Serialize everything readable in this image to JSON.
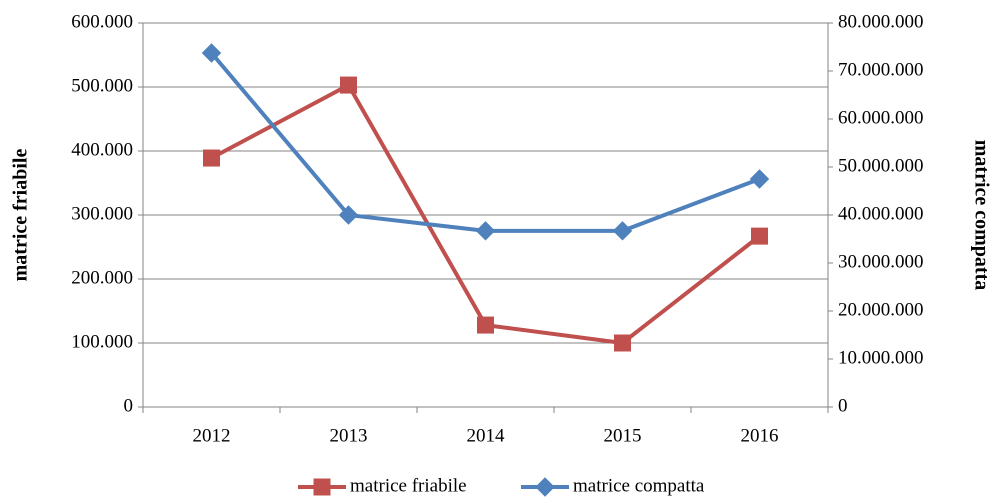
{
  "chart_data": {
    "type": "line",
    "ylabel": "matrice friabile",
    "y2label": "matrice compatta",
    "categories": [
      "2012",
      "2013",
      "2014",
      "2015",
      "2016"
    ],
    "series": [
      {
        "name": "matrice friabile",
        "color": "#c0504d",
        "marker": "square",
        "values": [
          389000,
          503000,
          128000,
          100000,
          267000
        ]
      },
      {
        "name": "matrice compatta",
        "color": "#4f81bd",
        "marker": "diamond",
        "axis": "y2",
        "values": [
          73750000,
          40000000,
          36700000,
          36700000,
          47500000
        ]
      }
    ],
    "ylim": [
      0,
      600000
    ],
    "yticks": [
      0,
      {
        "value": 100000,
        "label": "100.000"
      },
      {
        "value": 200000,
        "label": "200.000"
      },
      {
        "value": 300000,
        "label": "300.000"
      },
      {
        "value": 400000,
        "label": "400.000"
      },
      {
        "value": 500000,
        "label": "500.000"
      },
      {
        "value": 600000,
        "label": "600.000"
      }
    ],
    "y2lim": [
      0,
      80000000
    ],
    "y2ticks": [
      0,
      {
        "value": 10000000,
        "label": "10.000.000"
      },
      {
        "value": 20000000,
        "label": "20.000.000"
      },
      {
        "value": 30000000,
        "label": "30.000.000"
      },
      {
        "value": 40000000,
        "label": "40.000.000"
      },
      {
        "value": 50000000,
        "label": "50.000.000"
      },
      {
        "value": 60000000,
        "label": "60.000.000"
      },
      {
        "value": 70000000,
        "label": "70.000.000"
      },
      {
        "value": 80000000,
        "label": "80.000.000"
      }
    ],
    "grid": true,
    "legend": "bottom"
  }
}
